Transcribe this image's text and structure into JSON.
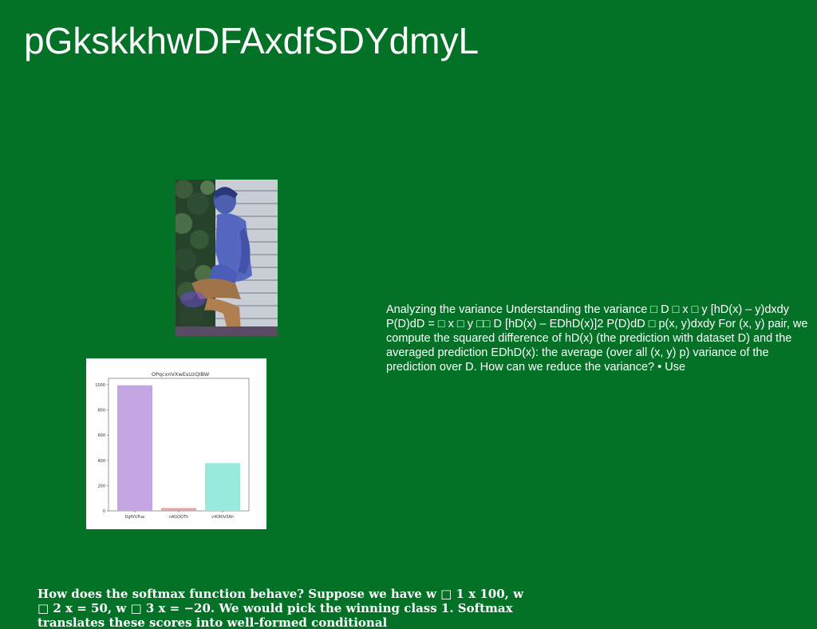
{
  "page": {
    "title": "pGkskkhwDFAxdfSDYdmyL",
    "paragraph_variance": "Analyzing the variance Understanding the variance □ D □ x □ y [hD(x) – y)dxdy P(D)dD = □ x □ y □□ D [hD(x) – EDhD(x)]2 P(D)dD □ p(x, y)dxdy For (x, y) pair, we compute the squared difference of hD(x) (the prediction with dataset D) and the averaged prediction EDhD(x): the average (over all (x, y) p) variance of the prediction over D. How can we reduce the variance? • Use",
    "paragraph_softmax": "How does the softmax function behave? Suppose we have w □ 1 x 100, w □ 2 x = 50, w □ 3 x = −20. We would pick the winning class 1. Softmax translates these scores into well-formed conditional"
  },
  "chart_data": {
    "type": "bar",
    "title": "OPqcxnVXwEsUzQIBW",
    "categories": [
      "DgfVUFue",
      "nAGOQTh",
      "vXORfv5Ah"
    ],
    "values": [
      995,
      22,
      378
    ],
    "colors": [
      "#c4a6e3",
      "#e0a6a6",
      "#98eadc"
    ],
    "yticks": [
      0,
      200,
      400,
      600,
      800,
      1000
    ],
    "ylim": [
      0,
      1050
    ],
    "xlabel": "",
    "ylabel": "",
    "grid": false
  }
}
